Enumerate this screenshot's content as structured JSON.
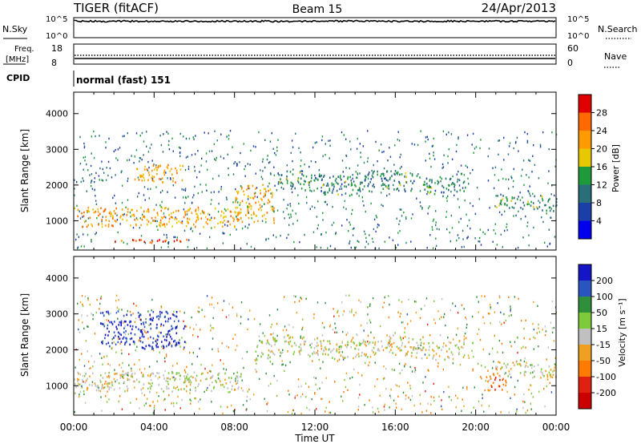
{
  "header": {
    "station": "TIGER (fitACF)",
    "beam": "Beam 15",
    "date": "24/Apr/2013"
  },
  "noise_panel": {
    "left_label": "N.Sky",
    "right_label": "N.Search",
    "ticks": [
      "10^5",
      "10^0"
    ]
  },
  "freq_panel": {
    "left_label_line1": "Freq.",
    "left_label_line2": "[MHz]",
    "left_ticks": [
      "18",
      "8"
    ],
    "right_label": "Nave",
    "right_ticks": [
      "60",
      "0"
    ]
  },
  "cpid_panel": {
    "label": "CPID",
    "program": "normal (fast) 151"
  },
  "power_colorbar": {
    "label": "Power [dB]",
    "ticks": [
      "28",
      "24",
      "20",
      "16",
      "12",
      "8",
      "4"
    ],
    "colors": [
      "#e00000",
      "#ff6a00",
      "#ff9a00",
      "#e8c800",
      "#1f9a3a",
      "#2a6e78",
      "#1a3fa8",
      "#0000ee"
    ]
  },
  "velocity_colorbar": {
    "label": "Velocity [m s⁻¹]",
    "ticks": [
      "200",
      "100",
      "50",
      "15",
      "-15",
      "-50",
      "-100",
      "-200"
    ],
    "colors": [
      "#1515c8",
      "#2a55c0",
      "#2f8f3a",
      "#7ecb3a",
      "#c0c0c0",
      "#f0a020",
      "#ff7a00",
      "#e02010",
      "#cc0000"
    ]
  },
  "chart_data": [
    {
      "type": "heatmap",
      "title": "Power",
      "xlabel": "",
      "ylabel": "Slant Range [km]",
      "xlim": [
        "00:00",
        "24:00"
      ],
      "ylim": [
        180,
        4600
      ],
      "y_ticks": [
        1000,
        2000,
        3000,
        4000
      ],
      "x_ticks": [
        "00:00",
        "04:00",
        "08:00",
        "12:00",
        "16:00",
        "20:00",
        "00:00"
      ],
      "color_units": "dB",
      "features": [
        {
          "name": "broad band",
          "t_start": 0.0,
          "t_end": 8.3,
          "range_start": 850,
          "range_end": 1400,
          "power": 22
        },
        {
          "name": "upper patch",
          "t_start": 3.0,
          "t_end": 5.5,
          "range_start": 2100,
          "range_end": 2600,
          "power": 21
        },
        {
          "name": "trace",
          "t_start": 8.0,
          "t_end": 10.0,
          "range_start": 1000,
          "range_end": 2100,
          "power": 20
        },
        {
          "name": "main trace",
          "t_start": 10.0,
          "t_end": 19.5,
          "range_start": 1800,
          "range_end": 2350,
          "power": 12
        },
        {
          "name": "late trace",
          "t_start": 21.0,
          "t_end": 24.0,
          "range_start": 1400,
          "range_end": 1800,
          "power": 13
        },
        {
          "name": "low band",
          "t_start": 1.8,
          "t_end": 6.5,
          "range_start": 400,
          "range_end": 500,
          "power": 28
        }
      ]
    },
    {
      "type": "heatmap",
      "title": "Velocity",
      "xlabel": "Time UT",
      "ylabel": "Slant Range [km]",
      "xlim": [
        "00:00",
        "24:00"
      ],
      "ylim": [
        180,
        4600
      ],
      "y_ticks": [
        1000,
        2000,
        3000,
        4000
      ],
      "x_ticks": [
        "00:00",
        "04:00",
        "08:00",
        "12:00",
        "16:00",
        "20:00",
        "00:00"
      ],
      "color_units": "m s-1",
      "features": [
        {
          "name": "ground scatter band",
          "t_start": 0.0,
          "t_end": 8.3,
          "range_start": 850,
          "range_end": 1400,
          "velocity": 0
        },
        {
          "name": "positive patch",
          "t_start": 1.3,
          "t_end": 5.5,
          "range_start": 2050,
          "range_end": 3100,
          "velocity": 200
        },
        {
          "name": "main trace",
          "t_start": 9.0,
          "t_end": 19.5,
          "range_start": 1800,
          "range_end": 2350,
          "velocity": 0
        },
        {
          "name": "negative patch",
          "t_start": 20.5,
          "t_end": 21.5,
          "range_start": 900,
          "range_end": 1400,
          "velocity": -80
        },
        {
          "name": "late trace",
          "t_start": 21.0,
          "t_end": 24.0,
          "range_start": 1300,
          "range_end": 1700,
          "velocity": 0
        }
      ]
    }
  ]
}
